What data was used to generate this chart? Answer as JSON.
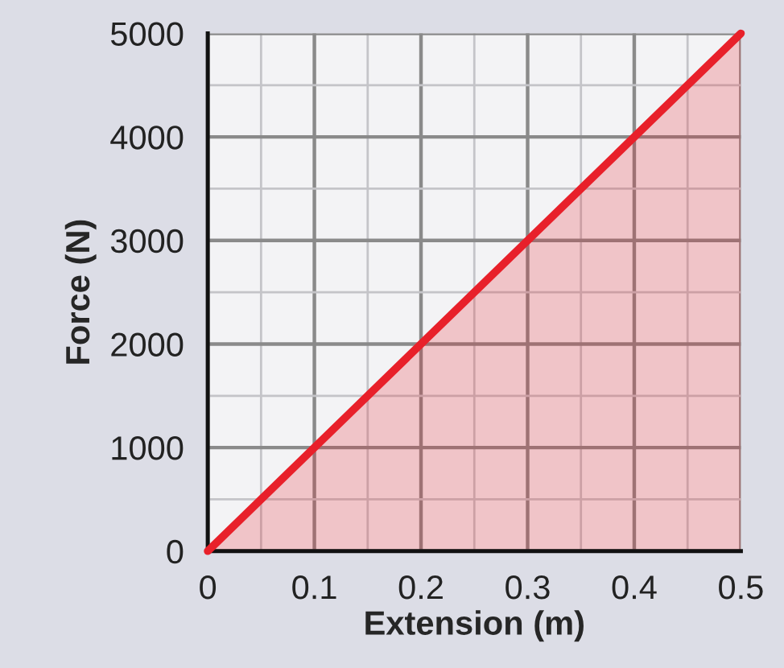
{
  "chart_data": {
    "type": "area",
    "xlabel": "Extension (m)",
    "ylabel": "Force (N)",
    "x": [
      0,
      0.5
    ],
    "series": [
      {
        "color": "#e8202a",
        "values": [
          0,
          5000
        ]
      }
    ],
    "xlim": [
      0,
      0.5
    ],
    "xticks": [
      0,
      0.1,
      0.2,
      0.3,
      0.4,
      0.5
    ],
    "ylim": [
      0,
      5000
    ],
    "yticks": [
      0,
      1000,
      2000,
      3000,
      4000,
      5000
    ],
    "grid": true,
    "legend": false
  }
}
